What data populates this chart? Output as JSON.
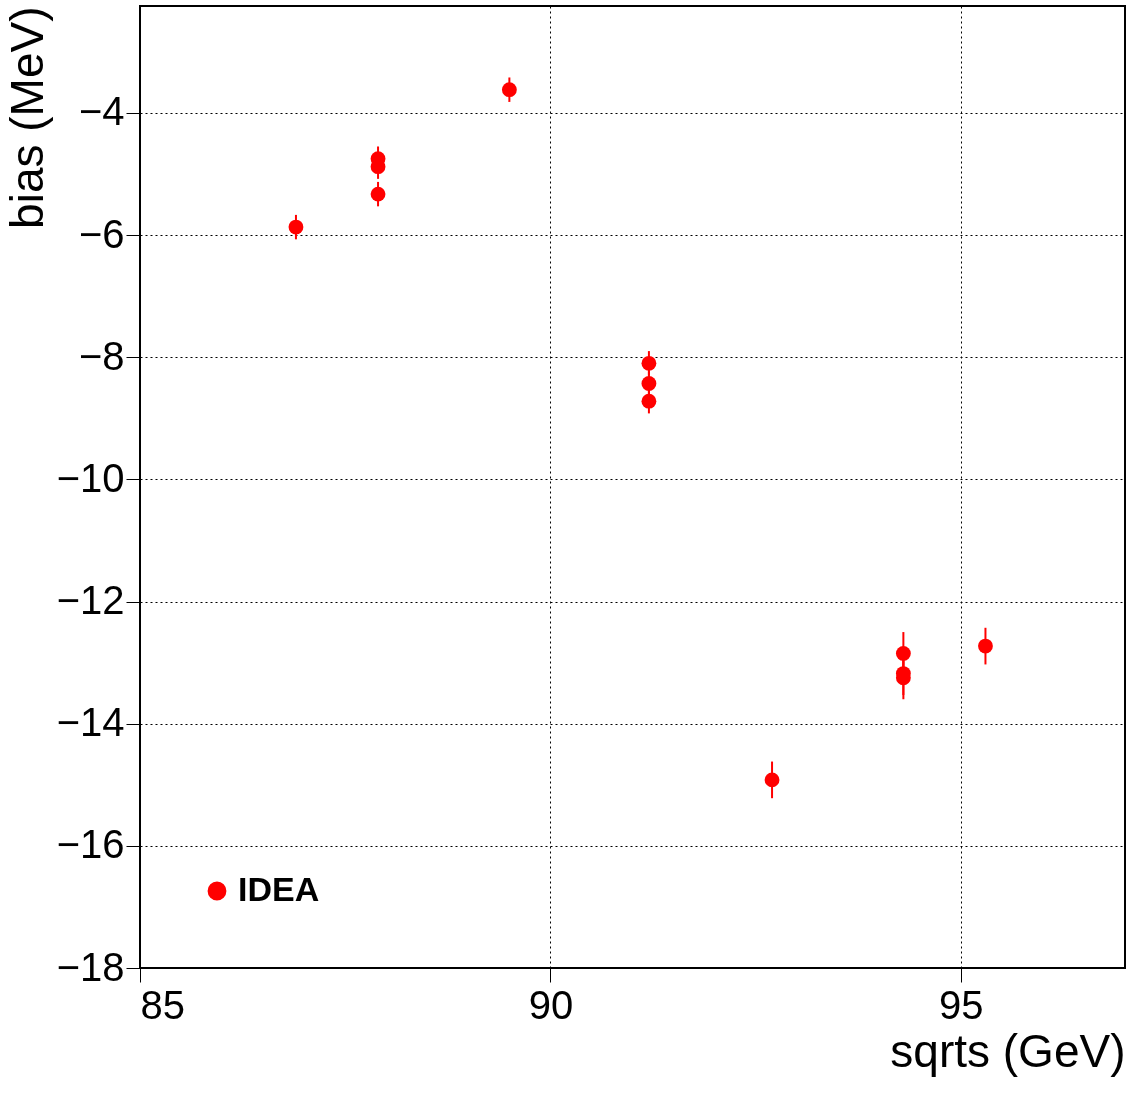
{
  "chart_data": {
    "type": "scatter",
    "xlabel": "sqrts (GeV)",
    "ylabel": "bias (MeV)",
    "x": [
      86.9,
      87.9,
      87.9,
      87.9,
      89.5,
      91.2,
      91.2,
      91.2,
      92.7,
      94.3,
      94.3,
      94.3,
      95.3
    ],
    "series": [
      {
        "name": "IDEA",
        "color": "#ff0000",
        "values": [
          -5.87,
          -4.75,
          -4.88,
          -5.33,
          -3.62,
          -8.1,
          -8.43,
          -8.72,
          -14.92,
          -12.85,
          -13.18,
          -13.25,
          -12.73
        ],
        "errors": [
          0.2,
          0.2,
          0.2,
          0.2,
          0.2,
          0.2,
          0.2,
          0.2,
          0.3,
          0.35,
          0.35,
          0.35,
          0.3
        ]
      }
    ],
    "xlim": [
      85,
      97
    ],
    "ylim": [
      -18,
      -2.25
    ],
    "xticks": [
      85,
      90,
      95
    ],
    "yticks": [
      -18,
      -16,
      -14,
      -12,
      -10,
      -8,
      -6,
      -4
    ],
    "grid": true,
    "legend": "bottom left",
    "marker": "circle"
  }
}
